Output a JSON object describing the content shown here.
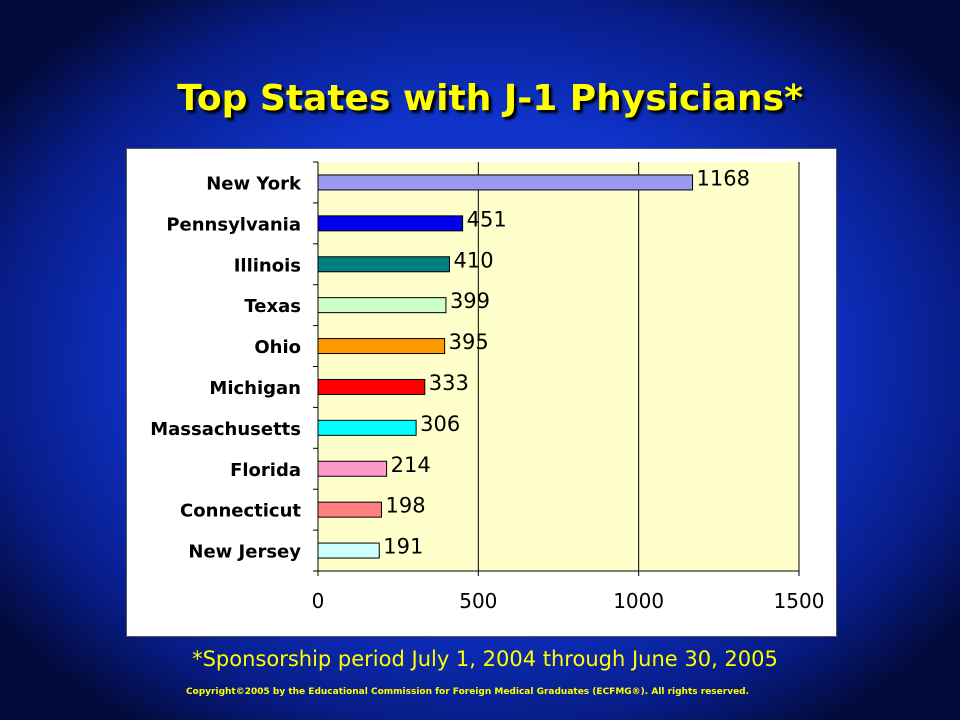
{
  "slide": {
    "title": "Top States with J-1 Physicians*",
    "footnote": "*Sponsorship period July 1, 2004 through June 30, 2005",
    "copyright": "Copyright©2005 by the Educational Commission for Foreign Medical Graduates (ECFMG®). All rights reserved."
  },
  "colors": {
    "background": "#0f32c8",
    "title": "#ffff00",
    "plot_area": "#ffffcc"
  },
  "chart_data": {
    "type": "bar",
    "orientation": "horizontal",
    "categories": [
      "New York",
      "Pennsylvania",
      "Illinois",
      "Texas",
      "Ohio",
      "Michigan",
      "Massachusetts",
      "Florida",
      "Connecticut",
      "New Jersey"
    ],
    "values": [
      1168,
      451,
      410,
      399,
      395,
      333,
      306,
      214,
      198,
      191
    ],
    "colors": [
      "#9999ee",
      "#0000ee",
      "#008080",
      "#ccffcc",
      "#ff9900",
      "#ff0000",
      "#00ffff",
      "#ff99cc",
      "#ff8080",
      "#ccffff"
    ],
    "xlim": [
      0,
      1500
    ],
    "xticks": [
      0,
      500,
      1000,
      1500
    ],
    "grid": "vertical",
    "legend": "none"
  }
}
